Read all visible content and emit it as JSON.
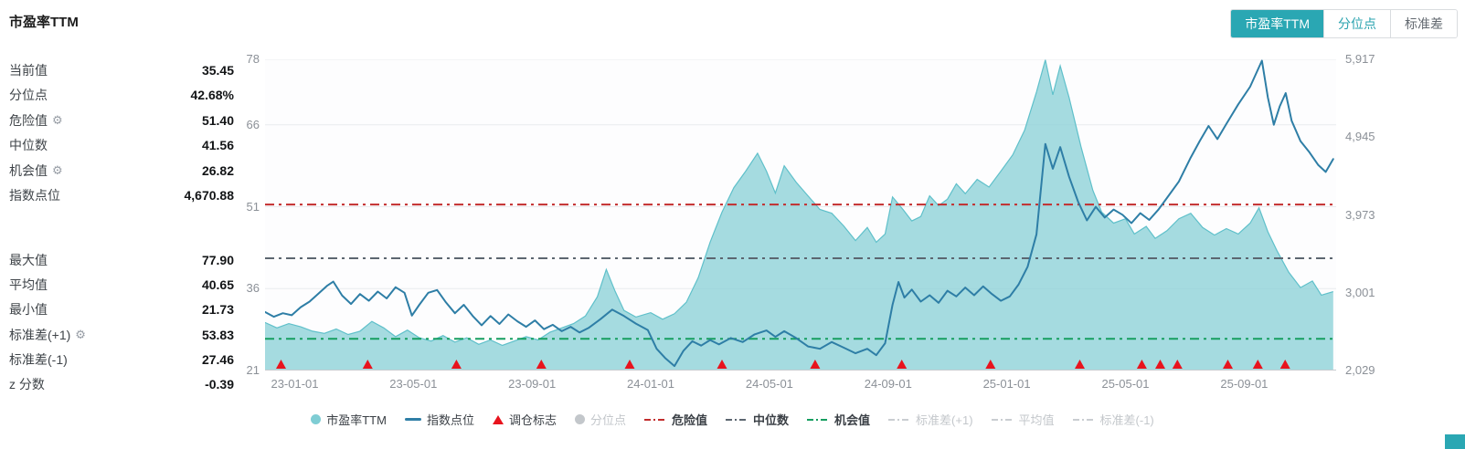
{
  "page": {
    "title": "市盈率TTM"
  },
  "accent_color": "#2aa7b3",
  "tabs": [
    {
      "label": "市盈率TTM",
      "active": true,
      "color": "#ffffff",
      "bg": "#2aa7b3"
    },
    {
      "label": "分位点",
      "active": false,
      "color": "#2aa3af",
      "bg": "#ffffff"
    },
    {
      "label": "标准差",
      "active": false,
      "color": "#62686f",
      "bg": "#ffffff"
    }
  ],
  "stats": {
    "group1": [
      {
        "label": "当前值",
        "value": "35.45"
      },
      {
        "label": "分位点",
        "value": "42.68%"
      },
      {
        "label": "危险值",
        "value": "51.40",
        "gear": true
      },
      {
        "label": "中位数",
        "value": "41.56"
      },
      {
        "label": "机会值",
        "value": "26.82",
        "gear": true
      },
      {
        "label": "指数点位",
        "value": "4,670.88"
      }
    ],
    "group2": [
      {
        "label": "最大值",
        "value": "77.90"
      },
      {
        "label": "平均值",
        "value": "40.65"
      },
      {
        "label": "最小值",
        "value": "21.73"
      },
      {
        "label": "标准差(+1)",
        "value": "53.83",
        "gear": true
      },
      {
        "label": "标准差(-1)",
        "value": "27.46"
      },
      {
        "label": "z 分数",
        "value": "-0.39"
      }
    ]
  },
  "chart_data": {
    "type": "area+line",
    "title": "市盈率TTM",
    "x_unit": "months since 2023-01-01",
    "x_range": [
      -1,
      35.1
    ],
    "x_ticks": [
      {
        "m": 0,
        "label": "23-01-01"
      },
      {
        "m": 4,
        "label": "23-05-01"
      },
      {
        "m": 8,
        "label": "23-09-01"
      },
      {
        "m": 12,
        "label": "24-01-01"
      },
      {
        "m": 16,
        "label": "24-05-01"
      },
      {
        "m": 20,
        "label": "24-09-01"
      },
      {
        "m": 24,
        "label": "25-01-01"
      },
      {
        "m": 28,
        "label": "25-05-01"
      },
      {
        "m": 32,
        "label": "25-09-01"
      }
    ],
    "left_axis": {
      "min": 21,
      "max": 78,
      "ticks": [
        {
          "v": 21,
          "label": "21"
        },
        {
          "v": 36,
          "label": "36"
        },
        {
          "v": 51,
          "label": "51"
        },
        {
          "v": 66,
          "label": "66"
        },
        {
          "v": 78,
          "label": "78"
        }
      ]
    },
    "right_axis": {
      "min": 2029,
      "max": 5917,
      "ticks": [
        {
          "v": 2029,
          "label": "2,029"
        },
        {
          "v": 3001,
          "label": "3,001"
        },
        {
          "v": 3973,
          "label": "3,973"
        },
        {
          "v": 4945,
          "label": "4,945"
        },
        {
          "v": 5917,
          "label": "5,917"
        }
      ]
    },
    "series": [
      {
        "name": "市盈率TTM",
        "type": "area",
        "axis": "left",
        "color": "#8fd2d8",
        "line_color": "#5fc0ca",
        "points": [
          [
            -1.0,
            29.8
          ],
          [
            -0.6,
            28.8
          ],
          [
            -0.2,
            29.6
          ],
          [
            0.2,
            29.0
          ],
          [
            0.6,
            28.2
          ],
          [
            1.0,
            27.8
          ],
          [
            1.4,
            28.6
          ],
          [
            1.8,
            27.6
          ],
          [
            2.2,
            28.2
          ],
          [
            2.6,
            30.0
          ],
          [
            3.0,
            28.8
          ],
          [
            3.4,
            27.2
          ],
          [
            3.8,
            28.4
          ],
          [
            4.2,
            27.0
          ],
          [
            4.6,
            26.4
          ],
          [
            5.0,
            27.4
          ],
          [
            5.4,
            26.2
          ],
          [
            5.8,
            27.0
          ],
          [
            6.2,
            25.8
          ],
          [
            6.6,
            26.6
          ],
          [
            7.0,
            25.6
          ],
          [
            7.4,
            26.4
          ],
          [
            7.8,
            27.2
          ],
          [
            8.2,
            26.6
          ],
          [
            8.6,
            28.0
          ],
          [
            9.0,
            28.8
          ],
          [
            9.4,
            29.6
          ],
          [
            9.8,
            31.0
          ],
          [
            10.2,
            34.5
          ],
          [
            10.5,
            39.5
          ],
          [
            10.8,
            35.5
          ],
          [
            11.1,
            32.0
          ],
          [
            11.5,
            30.8
          ],
          [
            12.0,
            31.6
          ],
          [
            12.4,
            30.4
          ],
          [
            12.8,
            31.4
          ],
          [
            13.2,
            33.5
          ],
          [
            13.6,
            38.0
          ],
          [
            14.0,
            44.5
          ],
          [
            14.4,
            50.0
          ],
          [
            14.8,
            54.5
          ],
          [
            15.2,
            57.5
          ],
          [
            15.6,
            60.8
          ],
          [
            15.9,
            57.5
          ],
          [
            16.2,
            53.5
          ],
          [
            16.5,
            58.5
          ],
          [
            16.9,
            55.5
          ],
          [
            17.3,
            53.0
          ],
          [
            17.7,
            50.5
          ],
          [
            18.1,
            49.8
          ],
          [
            18.5,
            47.5
          ],
          [
            18.9,
            44.8
          ],
          [
            19.3,
            47.2
          ],
          [
            19.6,
            44.5
          ],
          [
            19.9,
            46.0
          ],
          [
            20.15,
            52.8
          ],
          [
            20.5,
            50.5
          ],
          [
            20.8,
            48.4
          ],
          [
            21.1,
            49.2
          ],
          [
            21.4,
            53.0
          ],
          [
            21.7,
            51.2
          ],
          [
            22.0,
            52.4
          ],
          [
            22.3,
            55.2
          ],
          [
            22.6,
            53.4
          ],
          [
            23.0,
            56.0
          ],
          [
            23.4,
            54.6
          ],
          [
            23.8,
            57.5
          ],
          [
            24.2,
            60.5
          ],
          [
            24.6,
            65.0
          ],
          [
            25.0,
            72.0
          ],
          [
            25.3,
            77.9
          ],
          [
            25.55,
            71.5
          ],
          [
            25.8,
            76.8
          ],
          [
            26.1,
            71.0
          ],
          [
            26.5,
            62.0
          ],
          [
            26.9,
            54.0
          ],
          [
            27.2,
            50.0
          ],
          [
            27.6,
            48.0
          ],
          [
            28.0,
            48.8
          ],
          [
            28.3,
            46.0
          ],
          [
            28.7,
            47.4
          ],
          [
            29.0,
            45.2
          ],
          [
            29.4,
            46.6
          ],
          [
            29.8,
            48.8
          ],
          [
            30.2,
            49.8
          ],
          [
            30.6,
            47.2
          ],
          [
            31.0,
            45.8
          ],
          [
            31.4,
            47.0
          ],
          [
            31.8,
            46.0
          ],
          [
            32.2,
            48.0
          ],
          [
            32.5,
            50.8
          ],
          [
            32.8,
            46.4
          ],
          [
            33.1,
            43.0
          ],
          [
            33.5,
            39.0
          ],
          [
            33.9,
            36.2
          ],
          [
            34.3,
            37.4
          ],
          [
            34.6,
            34.8
          ],
          [
            35.0,
            35.45
          ]
        ]
      },
      {
        "name": "指数点位",
        "type": "line",
        "axis": "right",
        "color": "#2e7ea6",
        "points": [
          [
            -1.0,
            2760
          ],
          [
            -0.7,
            2700
          ],
          [
            -0.4,
            2745
          ],
          [
            -0.1,
            2720
          ],
          [
            0.2,
            2820
          ],
          [
            0.5,
            2890
          ],
          [
            0.8,
            2990
          ],
          [
            1.1,
            3090
          ],
          [
            1.3,
            3140
          ],
          [
            1.6,
            2965
          ],
          [
            1.9,
            2860
          ],
          [
            2.2,
            2985
          ],
          [
            2.5,
            2900
          ],
          [
            2.8,
            3015
          ],
          [
            3.1,
            2930
          ],
          [
            3.4,
            3070
          ],
          [
            3.7,
            3000
          ],
          [
            3.95,
            2715
          ],
          [
            4.2,
            2850
          ],
          [
            4.5,
            3000
          ],
          [
            4.8,
            3035
          ],
          [
            5.1,
            2880
          ],
          [
            5.4,
            2745
          ],
          [
            5.7,
            2850
          ],
          [
            6.0,
            2710
          ],
          [
            6.3,
            2595
          ],
          [
            6.6,
            2710
          ],
          [
            6.9,
            2610
          ],
          [
            7.2,
            2730
          ],
          [
            7.5,
            2645
          ],
          [
            7.8,
            2575
          ],
          [
            8.1,
            2655
          ],
          [
            8.4,
            2545
          ],
          [
            8.7,
            2600
          ],
          [
            9.0,
            2520
          ],
          [
            9.3,
            2575
          ],
          [
            9.6,
            2505
          ],
          [
            9.9,
            2560
          ],
          [
            10.3,
            2670
          ],
          [
            10.7,
            2790
          ],
          [
            11.1,
            2710
          ],
          [
            11.5,
            2615
          ],
          [
            11.9,
            2535
          ],
          [
            12.2,
            2300
          ],
          [
            12.5,
            2180
          ],
          [
            12.8,
            2085
          ],
          [
            13.1,
            2275
          ],
          [
            13.4,
            2395
          ],
          [
            13.7,
            2340
          ],
          [
            14.0,
            2410
          ],
          [
            14.3,
            2355
          ],
          [
            14.7,
            2435
          ],
          [
            15.1,
            2385
          ],
          [
            15.5,
            2480
          ],
          [
            15.9,
            2530
          ],
          [
            16.2,
            2450
          ],
          [
            16.5,
            2520
          ],
          [
            16.9,
            2435
          ],
          [
            17.3,
            2330
          ],
          [
            17.7,
            2300
          ],
          [
            18.1,
            2385
          ],
          [
            18.5,
            2315
          ],
          [
            18.9,
            2245
          ],
          [
            19.3,
            2300
          ],
          [
            19.6,
            2220
          ],
          [
            19.9,
            2370
          ],
          [
            20.15,
            2850
          ],
          [
            20.35,
            3135
          ],
          [
            20.55,
            2940
          ],
          [
            20.8,
            3040
          ],
          [
            21.1,
            2890
          ],
          [
            21.4,
            2970
          ],
          [
            21.7,
            2875
          ],
          [
            22.0,
            3025
          ],
          [
            22.3,
            2955
          ],
          [
            22.6,
            3065
          ],
          [
            22.9,
            2970
          ],
          [
            23.2,
            3080
          ],
          [
            23.5,
            2985
          ],
          [
            23.8,
            2900
          ],
          [
            24.1,
            2955
          ],
          [
            24.4,
            3105
          ],
          [
            24.7,
            3325
          ],
          [
            25.0,
            3730
          ],
          [
            25.3,
            4860
          ],
          [
            25.55,
            4550
          ],
          [
            25.8,
            4820
          ],
          [
            26.1,
            4450
          ],
          [
            26.4,
            4140
          ],
          [
            26.7,
            3905
          ],
          [
            27.0,
            4075
          ],
          [
            27.3,
            3940
          ],
          [
            27.6,
            4040
          ],
          [
            27.9,
            3975
          ],
          [
            28.2,
            3870
          ],
          [
            28.5,
            3995
          ],
          [
            28.8,
            3910
          ],
          [
            29.1,
            4035
          ],
          [
            29.4,
            4185
          ],
          [
            29.8,
            4390
          ],
          [
            30.2,
            4690
          ],
          [
            30.5,
            4895
          ],
          [
            30.8,
            5085
          ],
          [
            31.1,
            4920
          ],
          [
            31.4,
            5110
          ],
          [
            31.8,
            5355
          ],
          [
            32.2,
            5575
          ],
          [
            32.6,
            5900
          ],
          [
            32.8,
            5440
          ],
          [
            33.0,
            5100
          ],
          [
            33.2,
            5330
          ],
          [
            33.4,
            5495
          ],
          [
            33.6,
            5150
          ],
          [
            33.9,
            4895
          ],
          [
            34.2,
            4755
          ],
          [
            34.5,
            4595
          ],
          [
            34.75,
            4510
          ],
          [
            35.0,
            4671
          ]
        ]
      }
    ],
    "ref_lines": [
      {
        "name": "危险值",
        "value": 51.4,
        "color": "#c22d2d"
      },
      {
        "name": "中位数",
        "value": 41.56,
        "color": "#5c6670"
      },
      {
        "name": "机会值",
        "value": 26.82,
        "color": "#169e60"
      }
    ],
    "markers": {
      "name": "调仓标志",
      "shape": "triangle-up",
      "color": "#e8131d",
      "x": [
        -0.46,
        2.46,
        5.45,
        8.31,
        11.29,
        14.4,
        17.54,
        20.46,
        23.45,
        26.46,
        28.55,
        29.17,
        29.75,
        31.45,
        32.46,
        33.38
      ]
    },
    "grid": true,
    "legend_position": "bottom"
  },
  "legend": [
    {
      "label": "市盈率TTM",
      "swatch": "circle",
      "color": "#7fcdd4",
      "active": true,
      "bold": false
    },
    {
      "label": "指数点位",
      "swatch": "line",
      "color": "#2e7ea6",
      "active": true,
      "bold": false
    },
    {
      "label": "调仓标志",
      "swatch": "triangle",
      "color": "#e8131d",
      "active": true,
      "bold": false
    },
    {
      "label": "分位点",
      "swatch": "circle",
      "color": "#c3c7cb",
      "active": false,
      "bold": false
    },
    {
      "label": "危险值",
      "swatch": "dashline",
      "color": "#c22d2d",
      "active": true,
      "bold": true
    },
    {
      "label": "中位数",
      "swatch": "dashline",
      "color": "#5c6670",
      "active": true,
      "bold": true
    },
    {
      "label": "机会值",
      "swatch": "dashline",
      "color": "#169e60",
      "active": true,
      "bold": true
    },
    {
      "label": "标准差(+1)",
      "swatch": "dashline",
      "color": "#c9cdd1",
      "active": false,
      "bold": false
    },
    {
      "label": "平均值",
      "swatch": "dashline",
      "color": "#c9cdd1",
      "active": false,
      "bold": false
    },
    {
      "label": "标准差(-1)",
      "swatch": "dashline",
      "color": "#c9cdd1",
      "active": false,
      "bold": false
    }
  ]
}
